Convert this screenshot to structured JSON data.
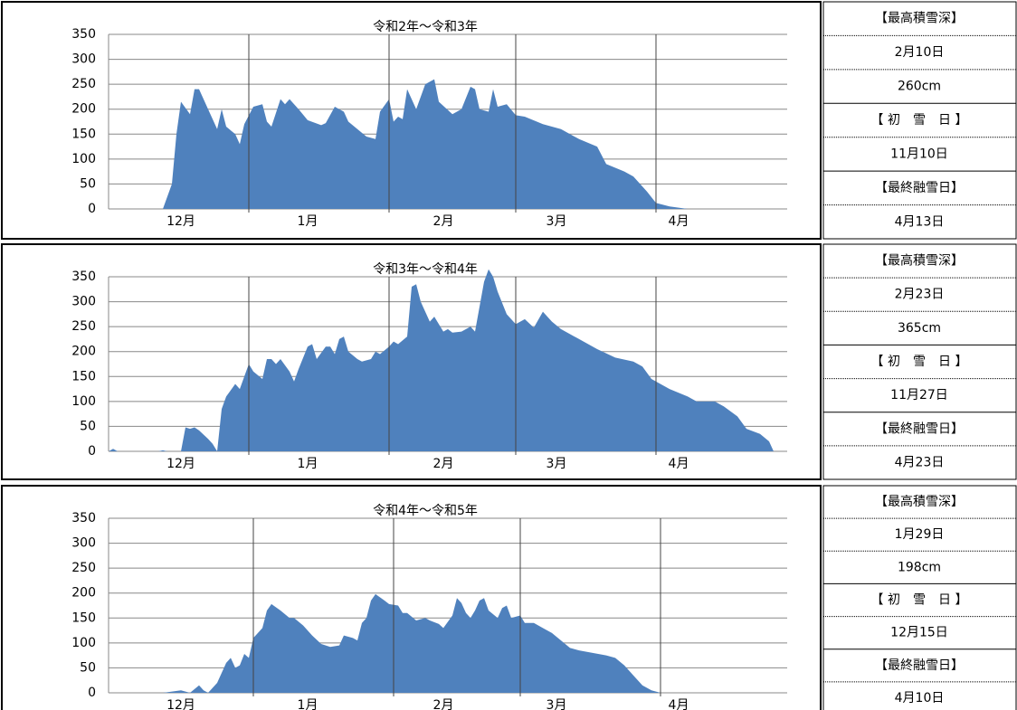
{
  "chart_data": [
    {
      "type": "area",
      "title": "令和2年～令和3年",
      "color": "#4f81bd",
      "x": [
        12,
        14,
        15,
        16,
        18,
        19,
        20,
        22,
        24,
        25,
        26,
        28,
        29,
        30,
        32,
        34,
        35,
        36,
        38,
        39,
        40,
        42,
        44,
        47,
        48,
        50,
        52,
        53,
        55,
        57,
        59,
        60,
        62,
        63,
        64,
        65,
        66,
        68,
        70,
        72,
        73,
        76,
        78,
        80,
        81,
        82,
        84,
        85,
        86,
        88,
        90,
        92,
        96,
        100,
        104,
        108,
        110,
        114,
        116,
        119,
        121,
        124,
        128
      ],
      "values": [
        0,
        50,
        150,
        215,
        190,
        240,
        240,
        200,
        160,
        200,
        165,
        150,
        130,
        170,
        205,
        210,
        175,
        165,
        220,
        210,
        220,
        200,
        178,
        168,
        172,
        205,
        195,
        175,
        160,
        145,
        140,
        195,
        220,
        175,
        185,
        180,
        240,
        200,
        250,
        260,
        215,
        190,
        200,
        245,
        240,
        200,
        195,
        240,
        205,
        210,
        188,
        185,
        170,
        160,
        140,
        125,
        90,
        75,
        65,
        35,
        12,
        5,
        0
      ],
      "xlim": [
        0,
        150
      ],
      "ylim": [
        0,
        350
      ],
      "yticks": [
        0,
        50,
        100,
        150,
        200,
        250,
        300,
        350
      ],
      "grid": true,
      "xgrid": [
        31,
        62,
        90,
        121
      ],
      "xticks": [
        {
          "value": 16,
          "label": "12月"
        },
        {
          "value": 44,
          "label": "1月"
        },
        {
          "value": 74,
          "label": "2月"
        },
        {
          "value": 99,
          "label": "3月"
        },
        {
          "value": 126,
          "label": "4月"
        }
      ]
    },
    {
      "type": "area",
      "title": "令和3年～令和4年",
      "color": "#4f81bd",
      "x": [
        0,
        1,
        2,
        11,
        12,
        13,
        16,
        17,
        18,
        19,
        20,
        22,
        23,
        24,
        25,
        26,
        28,
        29,
        31,
        32,
        34,
        35,
        36,
        37,
        38,
        40,
        41,
        42,
        44,
        45,
        46,
        48,
        49,
        50,
        51,
        52,
        53,
        55,
        56,
        58,
        59,
        60,
        62,
        63,
        64,
        66,
        67,
        68,
        69,
        71,
        72,
        74,
        75,
        76,
        78,
        80,
        81,
        83,
        84,
        85,
        86,
        88,
        90,
        92,
        94,
        96,
        98,
        100,
        104,
        108,
        112,
        116,
        118,
        120,
        124,
        128,
        130,
        134,
        136,
        139,
        141,
        144,
        146,
        147
      ],
      "values": [
        0,
        5,
        0,
        0,
        2,
        0,
        0,
        48,
        45,
        48,
        42,
        25,
        15,
        0,
        85,
        110,
        135,
        125,
        175,
        160,
        145,
        185,
        185,
        175,
        185,
        160,
        140,
        165,
        210,
        215,
        185,
        210,
        210,
        195,
        225,
        230,
        200,
        185,
        180,
        185,
        200,
        195,
        210,
        220,
        215,
        230,
        330,
        335,
        300,
        260,
        270,
        240,
        245,
        238,
        240,
        250,
        240,
        340,
        365,
        350,
        320,
        275,
        255,
        265,
        248,
        280,
        260,
        245,
        225,
        205,
        188,
        180,
        170,
        145,
        125,
        110,
        100,
        100,
        90,
        70,
        45,
        35,
        20,
        0
      ],
      "xlim": [
        0,
        150
      ],
      "ylim": [
        0,
        350
      ],
      "yticks": [
        0,
        50,
        100,
        150,
        200,
        250,
        300,
        350
      ],
      "grid": true,
      "xgrid": [
        31,
        62,
        90,
        121
      ],
      "xticks": [
        {
          "value": 16,
          "label": "12月"
        },
        {
          "value": 44,
          "label": "1月"
        },
        {
          "value": 74,
          "label": "2月"
        },
        {
          "value": 99,
          "label": "3月"
        },
        {
          "value": 126,
          "label": "4月"
        }
      ]
    },
    {
      "type": "area",
      "title": "令和4年～令和5年",
      "color": "#4f81bd",
      "x": [
        12,
        16,
        18,
        20,
        21,
        22,
        24,
        26,
        27,
        28,
        29,
        30,
        31,
        32,
        34,
        35,
        36,
        38,
        40,
        41,
        43,
        45,
        47,
        49,
        51,
        52,
        54,
        55,
        56,
        57,
        58,
        59,
        61,
        62,
        64,
        65,
        66,
        68,
        70,
        71,
        73,
        74,
        76,
        77,
        78,
        79,
        80,
        81,
        82,
        83,
        84,
        86,
        87,
        88,
        89,
        91,
        92,
        94,
        96,
        98,
        100,
        102,
        104,
        107,
        110,
        112,
        114,
        116,
        118,
        120,
        122
      ],
      "values": [
        0,
        5,
        0,
        15,
        5,
        0,
        20,
        60,
        70,
        50,
        55,
        78,
        70,
        110,
        130,
        165,
        178,
        165,
        150,
        150,
        135,
        115,
        98,
        92,
        95,
        115,
        110,
        105,
        140,
        150,
        185,
        198,
        185,
        178,
        175,
        160,
        160,
        145,
        150,
        145,
        138,
        130,
        155,
        190,
        180,
        160,
        150,
        165,
        185,
        190,
        165,
        150,
        170,
        175,
        150,
        155,
        140,
        140,
        130,
        120,
        105,
        90,
        85,
        80,
        75,
        70,
        55,
        35,
        15,
        5,
        0
      ],
      "xlim": [
        0,
        150
      ],
      "ylim": [
        0,
        350
      ],
      "yticks": [
        0,
        50,
        100,
        150,
        200,
        250,
        300,
        350
      ],
      "grid": true,
      "xgrid": [
        32,
        63,
        91,
        122
      ],
      "xticks": [
        {
          "value": 16,
          "label": "12月"
        },
        {
          "value": 44,
          "label": "1月"
        },
        {
          "value": 74,
          "label": "2月"
        },
        {
          "value": 99,
          "label": "3月"
        },
        {
          "value": 126,
          "label": "4月"
        }
      ]
    }
  ],
  "info": [
    [
      "【最高積雪深】",
      "2月10日",
      "260cm",
      "【 初　雪　日 】",
      "11月10日",
      "【最終融雪日】",
      "4月13日"
    ],
    [
      "【最高積雪深】",
      "2月23日",
      "365cm",
      "【 初　雪　日 】",
      "11月27日",
      "【最終融雪日】",
      "4月23日"
    ],
    [
      "【最高積雪深】",
      "1月29日",
      "198cm",
      "【 初　雪　日 】",
      "12月15日",
      "【最終融雪日】",
      "4月10日"
    ]
  ]
}
